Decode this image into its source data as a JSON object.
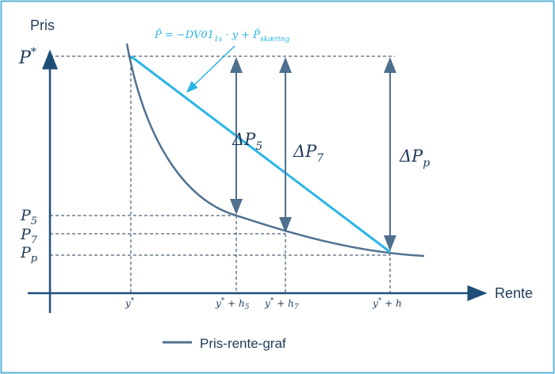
{
  "axes": {
    "y_label": "Pris",
    "x_label": "Rente"
  },
  "formula": {
    "lhs": "P̂",
    "mid": " = −DV01",
    "sub1": "1s",
    "rest": " · y + P̂",
    "sub2": "skæring"
  },
  "y_points": [
    {
      "base": "P",
      "sup": "*"
    },
    {
      "base": "P",
      "sub": "5"
    },
    {
      "base": "P",
      "sub": "7"
    },
    {
      "base": "P",
      "sub": "p"
    }
  ],
  "x_points": [
    {
      "base": "y",
      "sup": "*"
    },
    {
      "base": "y",
      "sup": "*",
      "rest": " + h",
      "sub": "5"
    },
    {
      "base": "y",
      "sup": "*",
      "rest": " + h",
      "sub": "7"
    },
    {
      "base": "y",
      "sup": "*",
      "rest": " + h"
    }
  ],
  "deltas": [
    {
      "base": "ΔP",
      "sub": "5"
    },
    {
      "base": "ΔP",
      "sub": "7"
    },
    {
      "base": "ΔP",
      "sub": "p"
    }
  ],
  "legend": "Pris-rente-graf"
}
